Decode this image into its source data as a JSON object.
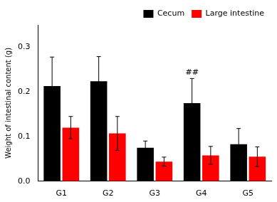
{
  "chart_data": {
    "type": "bar",
    "categories": [
      "G1",
      "G2",
      "G3",
      "G4",
      "G5"
    ],
    "series": [
      {
        "name": "Cecum",
        "color": "#000000",
        "values": [
          0.213,
          0.224,
          0.075,
          0.175,
          0.083
        ],
        "errors": [
          0.065,
          0.055,
          0.015,
          0.055,
          0.035
        ]
      },
      {
        "name": "Large intestine",
        "color": "#ff0000",
        "values": [
          0.12,
          0.107,
          0.044,
          0.058,
          0.055
        ],
        "errors": [
          0.025,
          0.038,
          0.01,
          0.02,
          0.022
        ]
      }
    ],
    "ylabel": "Weight of intestinal content (g)",
    "ylim": [
      0.0,
      0.35
    ],
    "yticks": [
      {
        "value": 0.0,
        "label": "0.0"
      },
      0.1,
      0.2,
      0.3
    ],
    "annotations": [
      {
        "text": "##",
        "category": "G4",
        "series": "Cecum"
      }
    ],
    "grid": false,
    "legend": "upper right"
  }
}
